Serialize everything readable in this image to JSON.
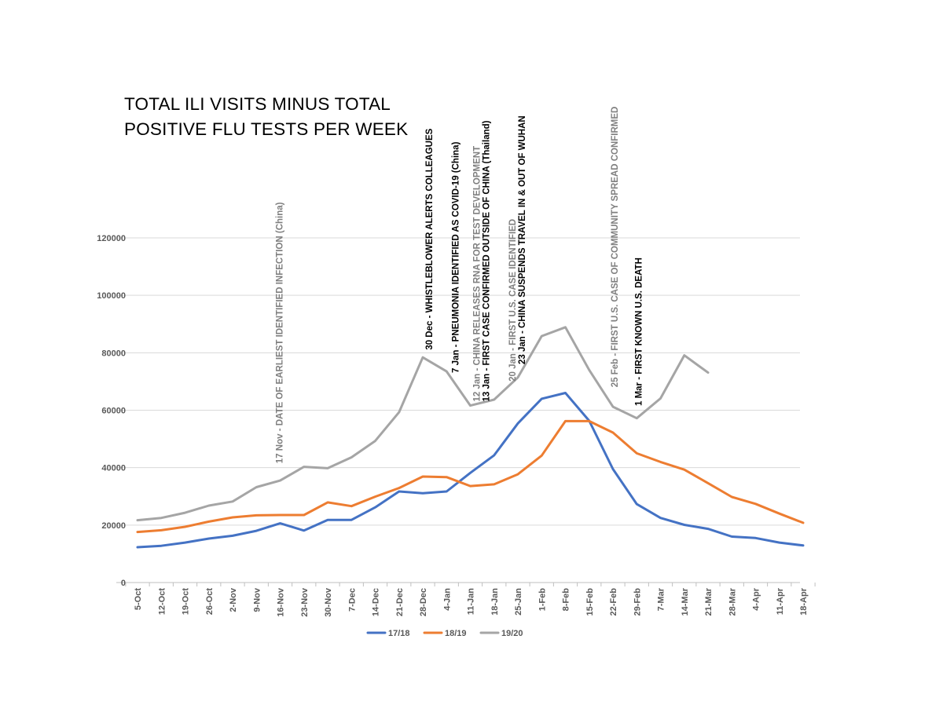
{
  "chart_data": {
    "type": "line",
    "title": [
      "TOTAL ILI VISITS MINUS TOTAL",
      "POSITIVE FLU TESTS PER WEEK"
    ],
    "xlabel": "",
    "ylabel": "",
    "ylim": [
      0,
      120000
    ],
    "yticks": [
      0,
      20000,
      40000,
      60000,
      80000,
      100000,
      120000
    ],
    "ytick_labels": [
      "0",
      "20000",
      "40000",
      "60000",
      "80000",
      "100000",
      "120000"
    ],
    "grid": true,
    "legend_position": "bottom",
    "categories": [
      "5-Oct",
      "12-Oct",
      "19-Oct",
      "26-Oct",
      "2-Nov",
      "9-Nov",
      "16-Nov",
      "23-Nov",
      "30-Nov",
      "7-Dec",
      "14-Dec",
      "21-Dec",
      "28-Dec",
      "4-Jan",
      "11-Jan",
      "18-Jan",
      "25-Jan",
      "1-Feb",
      "8-Feb",
      "15-Feb",
      "22-Feb",
      "29-Feb",
      "7-Mar",
      "14-Mar",
      "21-Mar",
      "28-Mar",
      "4-Apr",
      "11-Apr",
      "18-Apr"
    ],
    "series": [
      {
        "name": "17/18",
        "color": "#4472C4",
        "values": [
          12300,
          12800,
          13900,
          15300,
          16300,
          18000,
          20600,
          18100,
          21800,
          21800,
          26200,
          31700,
          31100,
          31700,
          38200,
          44300,
          55400,
          64000,
          66000,
          56300,
          39500,
          27300,
          22500,
          20100,
          18700,
          16000,
          15500,
          13900,
          12900
        ]
      },
      {
        "name": "18/19",
        "color": "#ED7D31",
        "values": [
          17600,
          18200,
          19400,
          21200,
          22700,
          23400,
          23500,
          23500,
          27900,
          26600,
          29900,
          32900,
          36900,
          36700,
          33600,
          34200,
          37700,
          44200,
          56200,
          56200,
          52200,
          45000,
          42000,
          39300,
          34600,
          29800,
          27400,
          24000,
          20800
        ]
      },
      {
        "name": "19/20",
        "color": "#A5A5A5",
        "values": [
          21700,
          22500,
          24300,
          26800,
          28200,
          33200,
          35500,
          40300,
          39800,
          43600,
          49300,
          59300,
          78400,
          73500,
          61600,
          63700,
          71400,
          85800,
          88900,
          74000,
          61200,
          57200,
          64100,
          79100,
          73100,
          null,
          null,
          null,
          null
        ]
      }
    ],
    "annotations": [
      {
        "text": "17 Nov - DATE OF EARLIEST IDENTIFIED INFECTION (China)",
        "color": "#7f7f7f",
        "anchor": 6.1,
        "y": 41500
      },
      {
        "text": "30 Dec - WHISTLEBLOWER ALERTS COLLEAGUES",
        "color": "#000000",
        "anchor": 12.4,
        "y": 81000
      },
      {
        "text": "7 Jan - PNEUMONIA IDENTIFIED AS COVID-19 (China)",
        "color": "#000000",
        "anchor": 13.5,
        "y": 73000
      },
      {
        "text": "12 Jan - CHINA RELEASES RNA FOR TEST DEVELOPMENT",
        "color": "#7f7f7f",
        "anchor": 14.4,
        "y": 63000
      },
      {
        "text": "13 Jan - FIRST CASE CONFIRMED OUTSIDE OF CHINA (Thailand)",
        "color": "#000000",
        "anchor": 14.8,
        "y": 63000
      },
      {
        "text": "20 Jan - FIRST U.S.  CASE IDENTIFIED",
        "color": "#7f7f7f",
        "anchor": 15.9,
        "y": 70000
      },
      {
        "text": "23 Jan - CHINA SUSPENDS TRAVEL IN & OUT OF WUHAN",
        "color": "#000000",
        "anchor": 16.3,
        "y": 76000
      },
      {
        "text": "25 Feb - FIRST U.S. CASE OF COMMUNITY SPREAD CONFIRMED",
        "color": "#7f7f7f",
        "anchor": 20.2,
        "y": 68000
      },
      {
        "text": "1 Mar - FIRST KNOWN U.S. DEATH",
        "color": "#000000",
        "anchor": 21.2,
        "y": 61500
      }
    ]
  }
}
